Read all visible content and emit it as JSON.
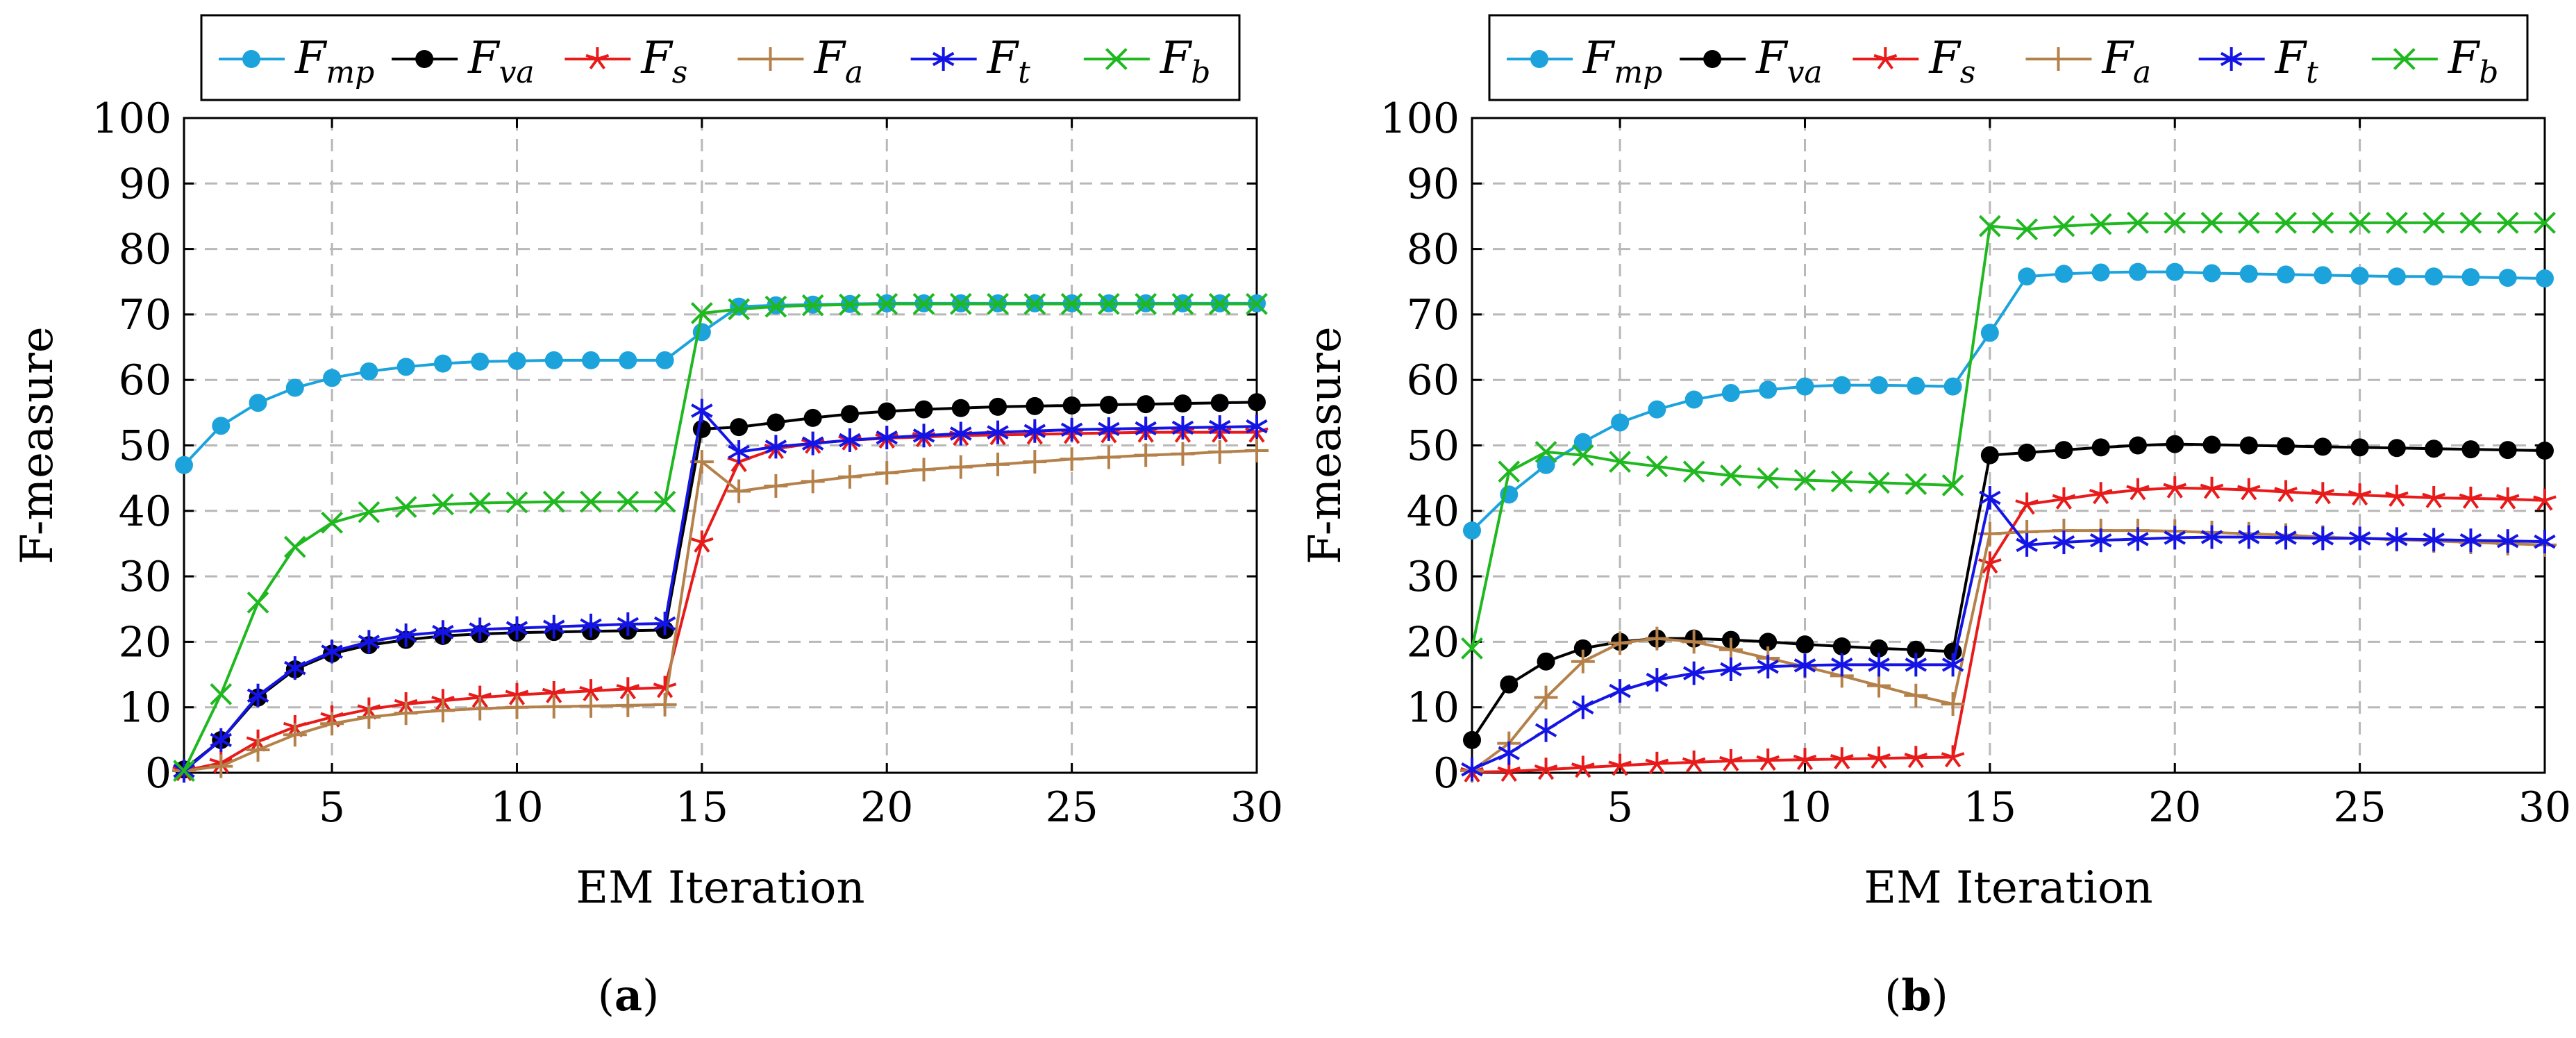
{
  "figure": {
    "panels": [
      {
        "caption_open": "(",
        "caption_letter": "a",
        "caption_close": ")"
      },
      {
        "caption_open": "(",
        "caption_letter": "b",
        "caption_close": ")"
      }
    ]
  },
  "chart_data": [
    {
      "type": "line",
      "title": "",
      "xlabel": "EM Iteration",
      "ylabel": "F-measure",
      "xlim": [
        1,
        30
      ],
      "ylim": [
        0,
        100
      ],
      "xticks": [
        5,
        10,
        15,
        20,
        25,
        30
      ],
      "yticks": [
        0,
        10,
        20,
        30,
        40,
        50,
        60,
        70,
        80,
        90,
        100
      ],
      "grid": true,
      "legend_position": "top",
      "x": [
        1,
        2,
        3,
        4,
        5,
        6,
        7,
        8,
        9,
        10,
        11,
        12,
        13,
        14,
        15,
        16,
        17,
        18,
        19,
        20,
        21,
        22,
        23,
        24,
        25,
        26,
        27,
        28,
        29,
        30
      ],
      "series": [
        {
          "name": "F",
          "sub": "mp",
          "color": "#1ca3dc",
          "marker": "circle",
          "values": [
            47,
            53,
            56.5,
            58.8,
            60.3,
            61.3,
            62,
            62.5,
            62.8,
            62.9,
            63,
            63,
            63,
            63,
            67.3,
            71.2,
            71.4,
            71.5,
            71.6,
            71.7,
            71.7,
            71.7,
            71.7,
            71.7,
            71.7,
            71.7,
            71.7,
            71.7,
            71.7,
            71.7
          ]
        },
        {
          "name": "F",
          "sub": "va",
          "color": "#000000",
          "marker": "circle",
          "values": [
            0.5,
            5,
            11.5,
            15.8,
            18.2,
            19.5,
            20.3,
            20.9,
            21.2,
            21.4,
            21.5,
            21.6,
            21.7,
            21.8,
            52.5,
            52.8,
            53.5,
            54.2,
            54.8,
            55.2,
            55.5,
            55.7,
            55.9,
            56,
            56.1,
            56.2,
            56.3,
            56.4,
            56.5,
            56.6
          ]
        },
        {
          "name": "F",
          "sub": "s",
          "color": "#e81a1a",
          "marker": "star",
          "values": [
            0.3,
            1.5,
            4.8,
            7,
            8.5,
            9.7,
            10.5,
            11,
            11.5,
            11.9,
            12.2,
            12.5,
            12.8,
            13,
            35.2,
            47.5,
            49.5,
            50.3,
            50.8,
            51.1,
            51.3,
            51.5,
            51.6,
            51.7,
            51.8,
            51.9,
            52,
            52,
            52,
            52
          ]
        },
        {
          "name": "F",
          "sub": "a",
          "color": "#b5814a",
          "marker": "plus",
          "values": [
            0.3,
            1,
            3.5,
            5.8,
            7.5,
            8.5,
            9.1,
            9.5,
            9.8,
            10,
            10.1,
            10.2,
            10.3,
            10.4,
            47.5,
            43,
            43.8,
            44.5,
            45.2,
            45.8,
            46.3,
            46.7,
            47.1,
            47.5,
            47.9,
            48.2,
            48.5,
            48.7,
            49,
            49.2
          ]
        },
        {
          "name": "F",
          "sub": "t",
          "color": "#1414e6",
          "marker": "asterisk",
          "values": [
            0.3,
            5,
            11.8,
            16,
            18.5,
            20,
            21,
            21.5,
            21.9,
            22.1,
            22.3,
            22.5,
            22.7,
            22.8,
            55.3,
            49,
            49.8,
            50.3,
            50.8,
            51.2,
            51.5,
            51.8,
            52,
            52.2,
            52.4,
            52.5,
            52.6,
            52.7,
            52.8,
            52.9
          ]
        },
        {
          "name": "F",
          "sub": "b",
          "color": "#1fb81f",
          "marker": "cross",
          "values": [
            0.3,
            12,
            26,
            34.5,
            38.2,
            39.8,
            40.6,
            41,
            41.2,
            41.3,
            41.4,
            41.4,
            41.4,
            41.4,
            70.2,
            70.8,
            71.2,
            71.4,
            71.5,
            71.6,
            71.6,
            71.6,
            71.6,
            71.6,
            71.6,
            71.6,
            71.6,
            71.6,
            71.6,
            71.6
          ]
        }
      ]
    },
    {
      "type": "line",
      "title": "",
      "xlabel": "EM Iteration",
      "ylabel": "F-measure",
      "xlim": [
        1,
        30
      ],
      "ylim": [
        0,
        100
      ],
      "xticks": [
        5,
        10,
        15,
        20,
        25,
        30
      ],
      "yticks": [
        0,
        10,
        20,
        30,
        40,
        50,
        60,
        70,
        80,
        90,
        100
      ],
      "grid": true,
      "legend_position": "top",
      "x": [
        1,
        2,
        3,
        4,
        5,
        6,
        7,
        8,
        9,
        10,
        11,
        12,
        13,
        14,
        15,
        16,
        17,
        18,
        19,
        20,
        21,
        22,
        23,
        24,
        25,
        26,
        27,
        28,
        29,
        30
      ],
      "series": [
        {
          "name": "F",
          "sub": "mp",
          "color": "#1ca3dc",
          "marker": "circle",
          "values": [
            37,
            42.5,
            47,
            50.5,
            53.5,
            55.5,
            57,
            58,
            58.5,
            59,
            59.2,
            59.2,
            59.1,
            59,
            67.2,
            75.8,
            76.2,
            76.4,
            76.5,
            76.5,
            76.3,
            76.2,
            76.1,
            76,
            75.9,
            75.8,
            75.8,
            75.7,
            75.6,
            75.5
          ]
        },
        {
          "name": "F",
          "sub": "va",
          "color": "#000000",
          "marker": "circle",
          "values": [
            5,
            13.5,
            17,
            19,
            20,
            20.5,
            20.5,
            20.3,
            20,
            19.6,
            19.3,
            19,
            18.8,
            18.5,
            48.5,
            48.9,
            49.3,
            49.7,
            50,
            50.2,
            50.1,
            50,
            49.9,
            49.8,
            49.7,
            49.6,
            49.5,
            49.4,
            49.3,
            49.2
          ]
        },
        {
          "name": "F",
          "sub": "s",
          "color": "#e81a1a",
          "marker": "star",
          "values": [
            0.1,
            0.2,
            0.5,
            0.8,
            1.1,
            1.4,
            1.6,
            1.8,
            1.9,
            2,
            2.1,
            2.2,
            2.3,
            2.4,
            32,
            41,
            41.8,
            42.6,
            43.2,
            43.5,
            43.4,
            43.2,
            42.9,
            42.6,
            42.4,
            42.2,
            42,
            41.9,
            41.8,
            41.6
          ]
        },
        {
          "name": "F",
          "sub": "a",
          "color": "#b5814a",
          "marker": "plus",
          "values": [
            0.3,
            4.5,
            11.5,
            17,
            19.8,
            20.5,
            20,
            18.8,
            17.5,
            16.2,
            14.8,
            13.3,
            11.8,
            10.5,
            36.5,
            36.8,
            37,
            37,
            37,
            36.9,
            36.7,
            36.5,
            36.3,
            36,
            35.8,
            35.6,
            35.4,
            35.2,
            35,
            34.8
          ]
        },
        {
          "name": "F",
          "sub": "t",
          "color": "#1414e6",
          "marker": "asterisk",
          "values": [
            0.5,
            3,
            6.5,
            10,
            12.5,
            14.2,
            15.2,
            15.8,
            16.2,
            16.4,
            16.5,
            16.5,
            16.5,
            16.5,
            42,
            34.8,
            35.2,
            35.5,
            35.7,
            35.9,
            36,
            36,
            35.9,
            35.8,
            35.8,
            35.7,
            35.6,
            35.5,
            35.4,
            35.3
          ]
        },
        {
          "name": "F",
          "sub": "b",
          "color": "#1fb81f",
          "marker": "cross",
          "values": [
            19,
            46,
            49,
            48.5,
            47.5,
            46.8,
            46,
            45.4,
            45,
            44.7,
            44.5,
            44.3,
            44.1,
            43.9,
            83.5,
            83,
            83.5,
            83.8,
            84,
            84,
            84,
            84,
            84,
            84,
            84,
            84,
            84,
            84,
            84,
            84
          ]
        }
      ]
    }
  ]
}
